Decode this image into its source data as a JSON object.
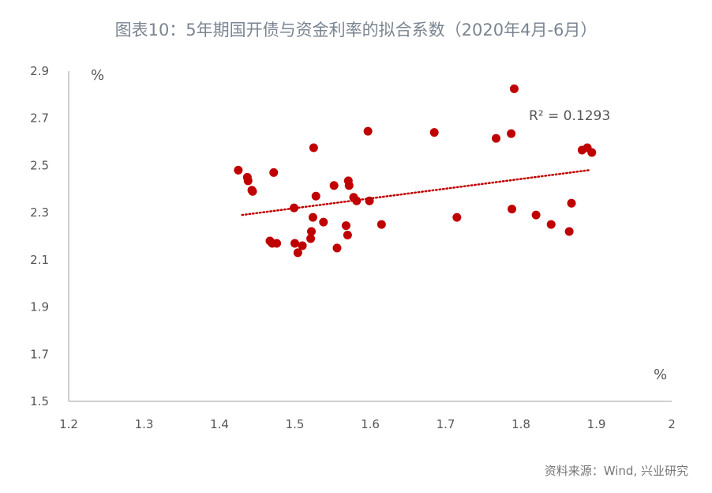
{
  "title": "图表10：5年期国开债与资金利率的拟合系数（2020年4月-6月）",
  "source": "资料来源：Wind, 兴业研究",
  "chart_data": {
    "type": "scatter",
    "title": "图表10：5年期国开债与资金利率的拟合系数（2020年4月-6月）",
    "x_unit": "%",
    "y_unit": "%",
    "xlim": [
      1.2,
      2.0
    ],
    "ylim": [
      1.5,
      2.9
    ],
    "x_ticks": [
      "1.2",
      "1.3",
      "1.4",
      "1.5",
      "1.6",
      "1.7",
      "1.8",
      "1.9",
      "2"
    ],
    "y_ticks": [
      "2.9",
      "2.7",
      "2.5",
      "2.3",
      "2.1",
      "1.9",
      "1.7",
      "1.5"
    ],
    "point_color": "#c00000",
    "trendline": {
      "x": [
        1.43,
        1.89
      ],
      "y": [
        2.29,
        2.48
      ],
      "style": "dotted",
      "color": "#c00000"
    },
    "r_squared_label": "R² = 0.1293",
    "points": [
      {
        "x": 1.425,
        "y": 2.48
      },
      {
        "x": 1.437,
        "y": 2.45
      },
      {
        "x": 1.438,
        "y": 2.435
      },
      {
        "x": 1.443,
        "y": 2.395
      },
      {
        "x": 1.444,
        "y": 2.39
      },
      {
        "x": 1.472,
        "y": 2.47
      },
      {
        "x": 1.467,
        "y": 2.18
      },
      {
        "x": 1.47,
        "y": 2.17
      },
      {
        "x": 1.476,
        "y": 2.17
      },
      {
        "x": 1.499,
        "y": 2.32
      },
      {
        "x": 1.5,
        "y": 2.17
      },
      {
        "x": 1.504,
        "y": 2.13
      },
      {
        "x": 1.51,
        "y": 2.16
      },
      {
        "x": 1.521,
        "y": 2.19
      },
      {
        "x": 1.522,
        "y": 2.22
      },
      {
        "x": 1.524,
        "y": 2.28
      },
      {
        "x": 1.525,
        "y": 2.575
      },
      {
        "x": 1.528,
        "y": 2.37
      },
      {
        "x": 1.538,
        "y": 2.26
      },
      {
        "x": 1.552,
        "y": 2.415
      },
      {
        "x": 1.556,
        "y": 2.15
      },
      {
        "x": 1.568,
        "y": 2.245
      },
      {
        "x": 1.57,
        "y": 2.205
      },
      {
        "x": 1.571,
        "y": 2.435
      },
      {
        "x": 1.572,
        "y": 2.415
      },
      {
        "x": 1.578,
        "y": 2.365
      },
      {
        "x": 1.582,
        "y": 2.35
      },
      {
        "x": 1.597,
        "y": 2.645
      },
      {
        "x": 1.599,
        "y": 2.35
      },
      {
        "x": 1.615,
        "y": 2.25
      },
      {
        "x": 1.685,
        "y": 2.64
      },
      {
        "x": 1.715,
        "y": 2.28
      },
      {
        "x": 1.767,
        "y": 2.615
      },
      {
        "x": 1.787,
        "y": 2.635
      },
      {
        "x": 1.788,
        "y": 2.315
      },
      {
        "x": 1.791,
        "y": 2.825
      },
      {
        "x": 1.82,
        "y": 2.29
      },
      {
        "x": 1.84,
        "y": 2.25
      },
      {
        "x": 1.864,
        "y": 2.22
      },
      {
        "x": 1.867,
        "y": 2.34
      },
      {
        "x": 1.881,
        "y": 2.565
      },
      {
        "x": 1.888,
        "y": 2.575
      },
      {
        "x": 1.894,
        "y": 2.555
      }
    ]
  }
}
